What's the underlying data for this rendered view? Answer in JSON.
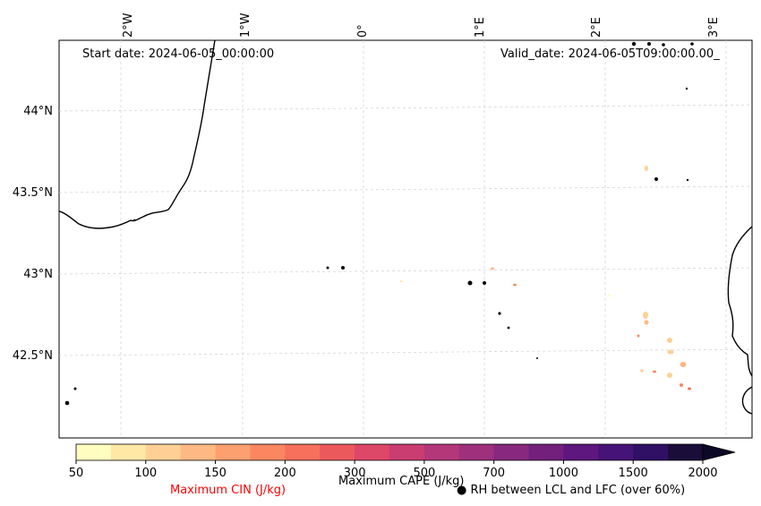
{
  "map": {
    "start_date": "Start date: 2024-06-05_00:00:00",
    "valid_date": "Valid_date: 2024-06-05T09:00:00.00_",
    "lon_labels": [
      "2°W",
      "1°W",
      "0°",
      "1°E",
      "2°E",
      "3°E"
    ],
    "lat_labels": [
      "44°N",
      "43.5°N",
      "43°N",
      "42.5°N"
    ],
    "gridlines": true
  },
  "colorbar": {
    "title": "Maximum CAPE (J/kg)",
    "ticks": [
      "50",
      "100",
      "150",
      "200",
      "300",
      "500",
      "700",
      "1000",
      "1500",
      "2000"
    ],
    "colors": [
      "#fffdbf",
      "#ffe7a6",
      "#fed095",
      "#feb883",
      "#fda070",
      "#fb8761",
      "#f6705b",
      "#ec595d",
      "#dd4768",
      "#c93d71",
      "#b4377a",
      "#9e307c",
      "#88287e",
      "#73207d",
      "#5d177f",
      "#461378",
      "#2f1064",
      "#1b0d3a"
    ],
    "extend_color": "#0c0926"
  },
  "legend": {
    "cin_label": "Maximum CIN (J/kg)",
    "cin_color": "#ff0000",
    "rh_label": "● RH between LCL and LFC (over 60%)"
  }
}
